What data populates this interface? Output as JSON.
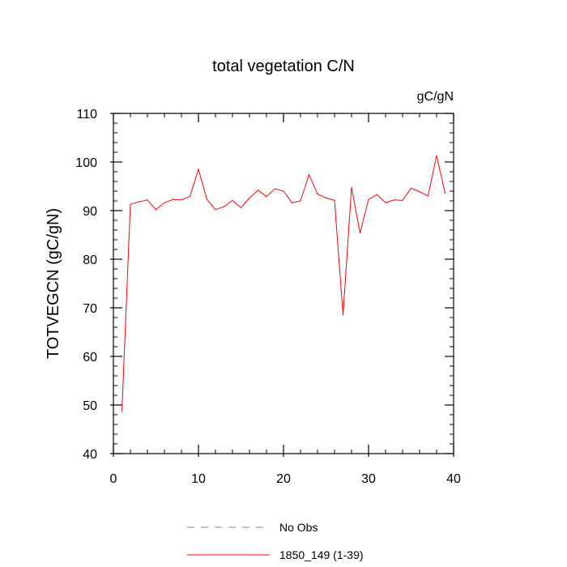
{
  "chart_data": {
    "type": "line",
    "title": "total vegetation C/N",
    "units_label": "gC/gN",
    "xlabel": "",
    "ylabel": "TOTVEGCN  (gC/gN)",
    "xlim": [
      0,
      40
    ],
    "ylim": [
      40,
      110
    ],
    "x_major_ticks": [
      0,
      10,
      20,
      30,
      40
    ],
    "x_tick_labels": [
      "0",
      "10",
      "20",
      "30",
      "40"
    ],
    "x_minor_step": 2,
    "y_major_ticks": [
      40,
      50,
      60,
      70,
      80,
      90,
      100,
      110
    ],
    "y_tick_labels": [
      "40",
      "50",
      "60",
      "70",
      "80",
      "90",
      "100",
      "110"
    ],
    "y_minor_step": 2,
    "grid": false,
    "legend_position": "bottom",
    "series": [
      {
        "name": "No Obs",
        "color": "#7777ee",
        "style": "dashed",
        "x": [],
        "values": []
      },
      {
        "name": "1850_149 (1-39)",
        "color": "#ff0000",
        "style": "solid",
        "x": [
          1,
          2,
          3,
          4,
          5,
          6,
          7,
          8,
          9,
          10,
          11,
          12,
          13,
          14,
          15,
          16,
          17,
          18,
          19,
          20,
          21,
          22,
          23,
          24,
          25,
          26,
          27,
          28,
          29,
          30,
          31,
          32,
          33,
          34,
          35,
          36,
          37,
          38,
          39
        ],
        "values": [
          48.7,
          91.3,
          91.8,
          92.2,
          90.2,
          91.6,
          92.3,
          92.2,
          92.9,
          98.5,
          92.3,
          90.2,
          90.8,
          92.1,
          90.6,
          92.6,
          94.2,
          92.9,
          94.5,
          94.0,
          91.6,
          92.0,
          97.4,
          93.4,
          92.6,
          92.1,
          68.5,
          94.8,
          85.4,
          92.3,
          93.3,
          91.6,
          92.2,
          92.1,
          94.6,
          93.9,
          93.0,
          101.3,
          93.6
        ]
      }
    ]
  }
}
